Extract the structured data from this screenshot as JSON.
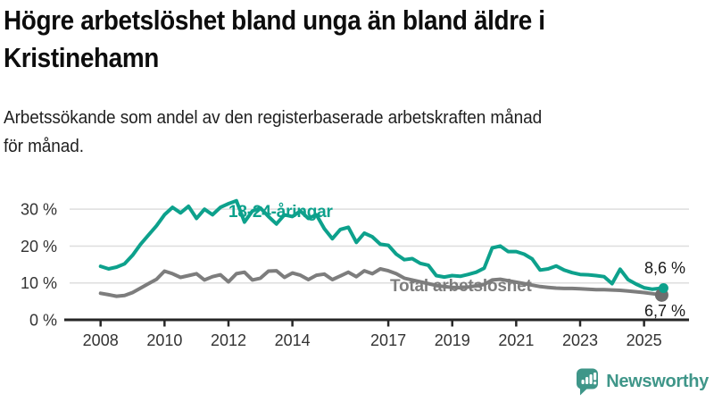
{
  "header": {
    "title": "Högre arbetslöshet bland unga än bland äldre i Kristinehamn",
    "title_lines": [
      "Högre arbetslöshet bland unga än bland äldre i",
      "Kristinehamn"
    ],
    "subtitle": "Arbetssökande som andel av den registerbaserade arbetskraften månad för månad.",
    "subtitle_lines": [
      "Arbetssökande som andel av den registerbaserade arbetskraften månad",
      "för månad."
    ]
  },
  "chart_data": {
    "type": "line",
    "title": "Högre arbetslöshet bland unga än bland äldre i Kristinehamn",
    "unit": "percent of registered labour force",
    "grid": "horizontal",
    "legend_position": "inline-labels",
    "xlim": [
      2007.9,
      2025.7
    ],
    "ylim": [
      0,
      34
    ],
    "x_ticks": [
      2008,
      2010,
      2012,
      2014,
      2017,
      2019,
      2021,
      2023,
      2025
    ],
    "x_tick_labels": [
      "2008",
      "2010",
      "2012",
      "2014",
      "2017",
      "2019",
      "2021",
      "2023",
      "2025"
    ],
    "y_ticks": [
      0,
      10,
      20,
      30
    ],
    "y_tick_labels": [
      "0 %",
      "10 %",
      "20 %",
      "30 %"
    ],
    "x": [
      2008,
      2008.25,
      2008.5,
      2008.75,
      2009,
      2009.25,
      2009.5,
      2009.75,
      2010,
      2010.25,
      2010.5,
      2010.75,
      2011,
      2011.25,
      2011.5,
      2011.75,
      2012,
      2012.25,
      2012.5,
      2012.75,
      2013,
      2013.25,
      2013.5,
      2013.75,
      2014,
      2014.25,
      2014.5,
      2014.75,
      2015,
      2015.25,
      2015.5,
      2015.75,
      2016,
      2016.25,
      2016.5,
      2016.75,
      2017,
      2017.25,
      2017.5,
      2017.75,
      2018,
      2018.25,
      2018.5,
      2018.75,
      2019,
      2019.25,
      2019.5,
      2019.75,
      2020,
      2020.25,
      2020.5,
      2020.75,
      2021,
      2021.25,
      2021.5,
      2021.75,
      2022,
      2022.25,
      2022.5,
      2022.75,
      2023,
      2023.25,
      2023.5,
      2023.75,
      2024,
      2024.25,
      2024.5,
      2024.75,
      2025,
      2025.25,
      2025.58
    ],
    "series": [
      {
        "name": "18-24-åringar",
        "color": "#0da18c",
        "end_label": "8,6 %",
        "end_value": 8.6,
        "values": [
          14.5,
          13.8,
          14.3,
          15.2,
          17.5,
          20.5,
          23,
          25.5,
          28.5,
          30.5,
          29,
          30.8,
          27.5,
          30,
          28.5,
          30.5,
          31.5,
          32.3,
          26.5,
          29.5,
          30.3,
          28,
          26,
          28.5,
          28,
          29.5,
          27.5,
          28.5,
          24.7,
          22,
          24.5,
          25.1,
          21,
          23.5,
          22.5,
          20.5,
          20.2,
          17.8,
          16.3,
          16.6,
          15.3,
          14.8,
          12,
          11.6,
          12,
          11.8,
          12.3,
          12.9,
          14,
          19.5,
          20,
          18.5,
          18.5,
          17.8,
          16.5,
          13.5,
          13.8,
          14.6,
          13.5,
          12.8,
          12.3,
          12.2,
          12,
          11.7,
          9.8,
          13.7,
          10.9,
          9.7,
          8.7,
          8.3,
          8.6
        ]
      },
      {
        "name": "Total arbetslöshet",
        "color": "#7d7d7d",
        "end_label": "6,7 %",
        "end_value": 6.7,
        "values": [
          7.2,
          6.8,
          6.4,
          6.6,
          7.4,
          8.6,
          9.8,
          11,
          13.2,
          12.5,
          11.5,
          12,
          12.5,
          10.8,
          11.7,
          12.2,
          10.3,
          12.5,
          12.9,
          10.8,
          11.3,
          13.2,
          13.3,
          11.5,
          12.7,
          12.1,
          10.9,
          12.1,
          12.4,
          10.9,
          11.9,
          12.9,
          11.7,
          13.3,
          12.5,
          13.8,
          13.3,
          12.5,
          11.3,
          10.8,
          10.3,
          9.8,
          9.3,
          9,
          8.8,
          8.7,
          8.9,
          9.2,
          9.6,
          10.8,
          11,
          10.6,
          10.2,
          9.8,
          9.4,
          9,
          8.8,
          8.6,
          8.5,
          8.5,
          8.4,
          8.3,
          8.2,
          8.2,
          8.1,
          8,
          7.8,
          7.6,
          7.4,
          7.1,
          6.7
        ]
      }
    ]
  },
  "branding": {
    "name": "Newsworthy",
    "color": "#3f9689",
    "icon": "newsworthy-speech-bubble-bar-chart-icon"
  },
  "colors": {
    "accent_teal": "#0da18c",
    "series_gray": "#7d7d7d",
    "end_dot_gray": "#6d6d6d",
    "axis": "#262626",
    "grid": "#dedede",
    "tick_text": "#333333",
    "title_text": "#0d0d0d"
  }
}
